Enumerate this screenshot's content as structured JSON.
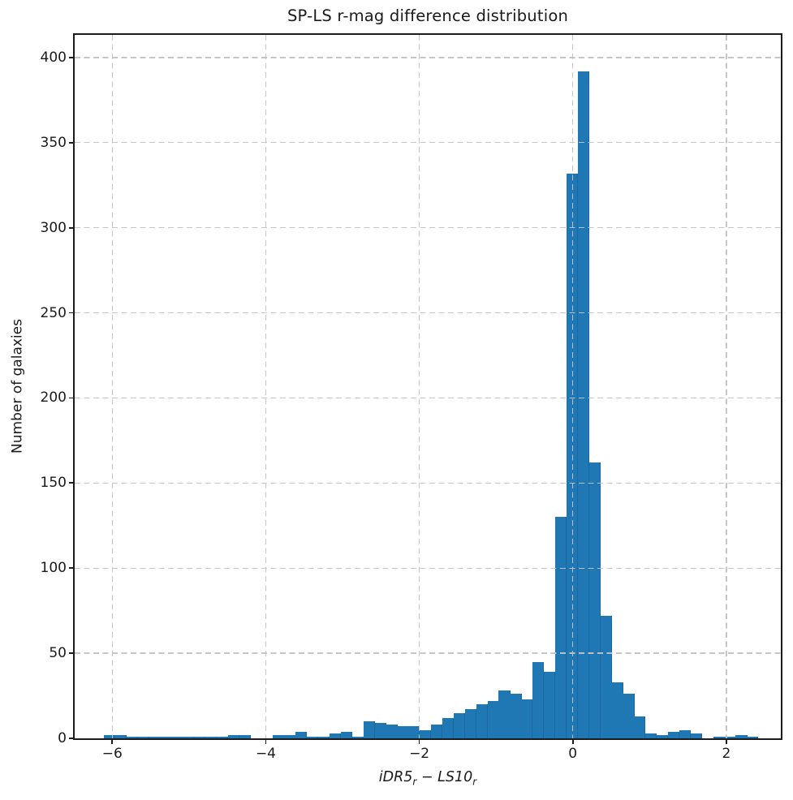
{
  "title": "SP-LS r-mag difference distribution",
  "y_axis": {
    "label": "Number of galaxies",
    "ticks": [
      {
        "value": 0,
        "label": "0"
      },
      {
        "value": 50,
        "label": "50"
      },
      {
        "value": 100,
        "label": "100"
      },
      {
        "value": 150,
        "label": "150"
      },
      {
        "value": 200,
        "label": "200"
      },
      {
        "value": 250,
        "label": "250"
      },
      {
        "value": 300,
        "label": "300"
      },
      {
        "value": 350,
        "label": "350"
      },
      {
        "value": 400,
        "label": "400"
      }
    ]
  },
  "x_axis": {
    "label_plain": "iDR5r − LS10r",
    "label_parts": {
      "term1": "iDR5",
      "sub1": "r",
      "minus": " − ",
      "term2": "LS10",
      "sub2": "r"
    },
    "ticks": [
      {
        "value": -6,
        "label": "−6"
      },
      {
        "value": -4,
        "label": "−4"
      },
      {
        "value": -2,
        "label": "−2"
      },
      {
        "value": 0,
        "label": "0"
      },
      {
        "value": 2,
        "label": "2"
      }
    ]
  },
  "chart_data": {
    "type": "bar",
    "subtype": "histogram",
    "title": "SP-LS r-mag difference distribution",
    "xlabel": "iDR5_r − LS10_r",
    "ylabel": "Number of galaxies",
    "bin_start": -6.11,
    "bin_width": 0.147,
    "counts": [
      2,
      2,
      1,
      1,
      1,
      1,
      1,
      1,
      1,
      1,
      1,
      2,
      2,
      0,
      0,
      2,
      2,
      4,
      1,
      1,
      3,
      4,
      1,
      10,
      9,
      8,
      7,
      7,
      5,
      8,
      12,
      15,
      17,
      20,
      22,
      28,
      26,
      23,
      45,
      39,
      130,
      332,
      392,
      162,
      72,
      33,
      26,
      13,
      3,
      2,
      4,
      5,
      3,
      0,
      1,
      1,
      2,
      1
    ],
    "xlim": [
      -6.49,
      2.71
    ],
    "ylim": [
      0,
      413.3
    ],
    "bar_color": "#1f77b4",
    "grid": {
      "enabled": true,
      "style": "dashed",
      "axes": "both",
      "drawn_over_bars": true,
      "color": "#c3c3c3"
    },
    "legend": "none"
  }
}
